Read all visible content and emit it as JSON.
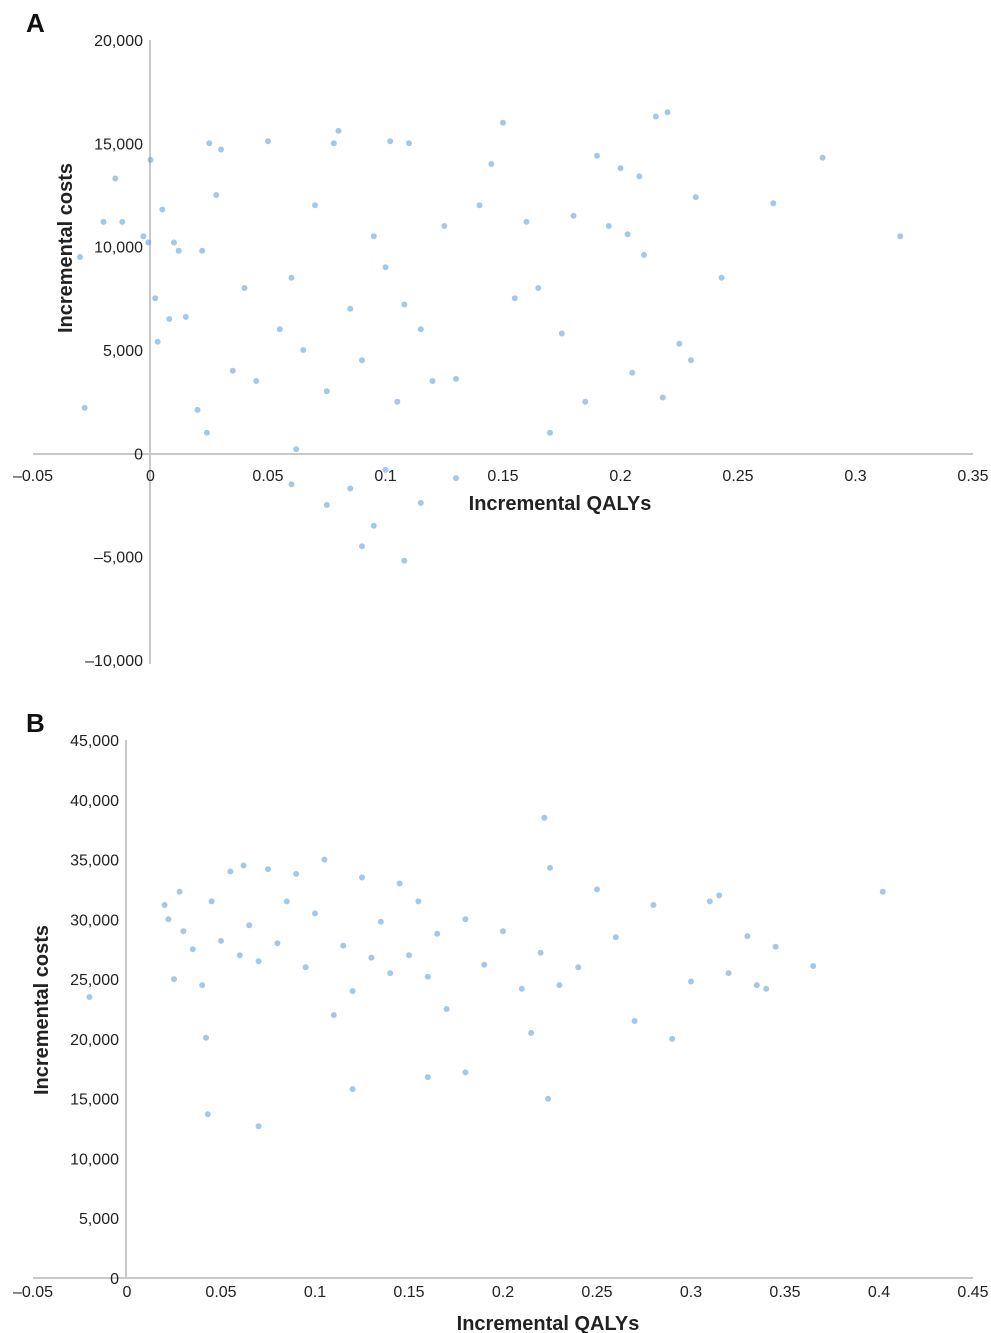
{
  "chart_data": [
    {
      "panel": "A",
      "type": "scatter",
      "xlabel": "Incremental QALYs",
      "ylabel": "Incremental costs",
      "xlim": [
        -0.05,
        0.35
      ],
      "ylim": [
        -10000,
        20000
      ],
      "xticks": [
        -0.05,
        0,
        0.05,
        0.1,
        0.15,
        0.2,
        0.25,
        0.3,
        0.35
      ],
      "xtick_labels": [
        "–0.05",
        "0",
        "0.05",
        "0.1",
        "0.15",
        "0.2",
        "0.25",
        "0.3",
        "0.35"
      ],
      "yticks": [
        -10000,
        -5000,
        0,
        5000,
        10000,
        15000,
        20000
      ],
      "ytick_labels": [
        "–10,000",
        "–5,000",
        "0",
        "5,000",
        "10,000",
        "15,000",
        "20,000"
      ],
      "color": "#5b9bd5",
      "series": [
        {
          "x": [
            -0.03,
            -0.028,
            -0.02,
            -0.015,
            -0.012,
            -0.003,
            -0.001,
            0.0,
            0.002,
            0.003,
            0.005,
            0.008,
            0.01,
            0.012,
            0.015,
            0.02,
            0.022,
            0.024,
            0.025,
            0.028,
            0.03,
            0.035,
            0.04,
            0.045,
            0.05,
            0.055,
            0.06,
            0.065,
            0.07,
            0.075,
            0.078,
            0.08,
            0.085,
            0.09,
            0.095,
            0.1,
            0.102,
            0.105,
            0.108,
            0.11,
            0.115,
            0.12,
            0.125,
            0.13,
            0.14,
            0.145,
            0.15,
            0.155,
            0.16,
            0.165,
            0.17,
            0.175,
            0.18,
            0.185,
            0.19,
            0.195,
            0.2,
            0.203,
            0.205,
            0.208,
            0.21,
            0.215,
            0.218,
            0.22,
            0.225,
            0.23,
            0.232,
            0.243,
            0.265,
            0.286,
            0.319,
            0.095,
            0.108,
            0.085,
            0.075,
            0.06,
            0.1,
            0.115,
            0.13,
            0.062,
            0.09
          ],
          "y": [
            9500,
            2200,
            11200,
            13300,
            11200,
            10500,
            10200,
            14200,
            7500,
            5400,
            11800,
            6500,
            10200,
            9800,
            6600,
            2100,
            9800,
            1000,
            15000,
            12500,
            14700,
            4000,
            8000,
            3500,
            15100,
            6000,
            8500,
            5000,
            12000,
            3000,
            15000,
            15600,
            7000,
            4500,
            10500,
            9000,
            15100,
            2500,
            7200,
            15000,
            6000,
            3500,
            11000,
            3600,
            12000,
            14000,
            16000,
            7500,
            11200,
            8000,
            1000,
            5800,
            11500,
            2500,
            14400,
            11000,
            13800,
            10600,
            3900,
            13400,
            9600,
            16300,
            2700,
            16500,
            5300,
            4500,
            12400,
            8500,
            12100,
            14300,
            10500,
            -3500,
            -5200,
            -1700,
            -2500,
            -1500,
            -800,
            -2400,
            -1200,
            200,
            -4500
          ]
        }
      ]
    },
    {
      "panel": "B",
      "type": "scatter",
      "xlabel": "Incremental QALYs",
      "ylabel": "Incremental costs",
      "xlim": [
        -0.05,
        0.45
      ],
      "ylim": [
        0,
        45000
      ],
      "xticks": [
        -0.05,
        0,
        0.05,
        0.1,
        0.15,
        0.2,
        0.25,
        0.3,
        0.35,
        0.4,
        0.45
      ],
      "xtick_labels": [
        "–0.05",
        "0",
        "0.05",
        "0.1",
        "0.15",
        "0.2",
        "0.25",
        "0.3",
        "0.35",
        "0.4",
        "0.45"
      ],
      "yticks": [
        0,
        5000,
        10000,
        15000,
        20000,
        25000,
        30000,
        35000,
        40000,
        45000
      ],
      "ytick_labels": [
        "0",
        "5,000",
        "10,000",
        "15,000",
        "20,000",
        "25,000",
        "30,000",
        "35,000",
        "40,000",
        "45,000"
      ],
      "color": "#5b9bd5",
      "series": [
        {
          "x": [
            -0.02,
            0.02,
            0.022,
            0.025,
            0.028,
            0.03,
            0.035,
            0.04,
            0.042,
            0.045,
            0.05,
            0.055,
            0.06,
            0.062,
            0.065,
            0.07,
            0.075,
            0.08,
            0.085,
            0.09,
            0.095,
            0.1,
            0.105,
            0.11,
            0.115,
            0.12,
            0.125,
            0.13,
            0.135,
            0.14,
            0.145,
            0.15,
            0.155,
            0.16,
            0.165,
            0.17,
            0.18,
            0.19,
            0.2,
            0.21,
            0.215,
            0.22,
            0.222,
            0.225,
            0.23,
            0.24,
            0.25,
            0.26,
            0.27,
            0.28,
            0.29,
            0.3,
            0.31,
            0.315,
            0.32,
            0.33,
            0.335,
            0.34,
            0.345,
            0.365,
            0.402,
            0.07,
            0.043,
            0.12,
            0.16,
            0.18,
            0.224
          ],
          "y": [
            23500,
            31200,
            30000,
            25000,
            32300,
            29000,
            27500,
            24500,
            20100,
            31500,
            28200,
            34000,
            27000,
            34500,
            29500,
            26500,
            34200,
            28000,
            31500,
            33800,
            26000,
            30500,
            35000,
            22000,
            27800,
            24000,
            33500,
            26800,
            29800,
            25500,
            33000,
            27000,
            31500,
            25200,
            28800,
            22500,
            30000,
            26200,
            29000,
            24200,
            20500,
            27200,
            38500,
            34300,
            24500,
            26000,
            32500,
            28500,
            21500,
            31200,
            20000,
            24800,
            31500,
            32000,
            25500,
            28600,
            24500,
            24200,
            27700,
            26100,
            32300,
            12700,
            13700,
            15800,
            16800,
            17200,
            15000
          ]
        }
      ]
    }
  ]
}
